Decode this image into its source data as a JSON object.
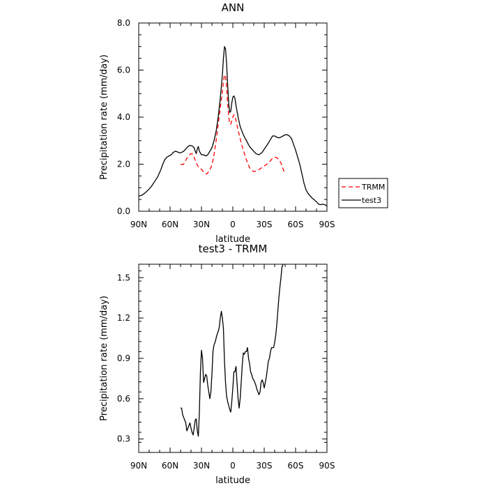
{
  "chart_data": [
    {
      "type": "line",
      "title": "ANN",
      "xlabel": "latitude",
      "ylabel": "Precipitation rate (mm/day)",
      "xlim": [
        90,
        -90
      ],
      "ylim": [
        0,
        8
      ],
      "x_ticks": [
        {
          "value": 90,
          "label": "90N"
        },
        {
          "value": 60,
          "label": "60N"
        },
        {
          "value": 30,
          "label": "30N"
        },
        {
          "value": 0,
          "label": "0"
        },
        {
          "value": -30,
          "label": "30S"
        },
        {
          "value": -60,
          "label": "60S"
        },
        {
          "value": -90,
          "label": "90S"
        }
      ],
      "y_ticks": [
        {
          "value": 0,
          "label": "0.0"
        },
        {
          "value": 2,
          "label": "2.0"
        },
        {
          "value": 4,
          "label": "4.0"
        },
        {
          "value": 6,
          "label": "6.0"
        },
        {
          "value": 8,
          "label": "8.0"
        }
      ],
      "grid": false,
      "legend": {
        "placement": "right"
      },
      "series": [
        {
          "name": "TRMM",
          "color": "#ff0000",
          "dash": "dashed",
          "points": [
            [
              50,
              1.98
            ],
            [
              47,
              2.0
            ],
            [
              44,
              2.25
            ],
            [
              41,
              2.42
            ],
            [
              39,
              2.45
            ],
            [
              37,
              2.3
            ],
            [
              35,
              2.05
            ],
            [
              33,
              1.9
            ],
            [
              30,
              1.78
            ],
            [
              27,
              1.62
            ],
            [
              25,
              1.58
            ],
            [
              23,
              1.68
            ],
            [
              20,
              1.95
            ],
            [
              18,
              2.4
            ],
            [
              16,
              3.0
            ],
            [
              14,
              3.7
            ],
            [
              12,
              4.4
            ],
            [
              10,
              5.1
            ],
            [
              9,
              5.5
            ],
            [
              8,
              5.8
            ],
            [
              7,
              5.75
            ],
            [
              6,
              5.3
            ],
            [
              5,
              4.6
            ],
            [
              4,
              4.05
            ],
            [
              3,
              3.7
            ],
            [
              2,
              3.7
            ],
            [
              1,
              3.85
            ],
            [
              0,
              4.0
            ],
            [
              -1,
              4.1
            ],
            [
              -2,
              4.05
            ],
            [
              -3,
              3.85
            ],
            [
              -5,
              3.45
            ],
            [
              -8,
              2.9
            ],
            [
              -12,
              2.3
            ],
            [
              -16,
              1.85
            ],
            [
              -20,
              1.68
            ],
            [
              -23,
              1.72
            ],
            [
              -26,
              1.8
            ],
            [
              -29,
              1.9
            ],
            [
              -32,
              1.98
            ],
            [
              -35,
              2.1
            ],
            [
              -38,
              2.25
            ],
            [
              -40,
              2.3
            ],
            [
              -42,
              2.28
            ],
            [
              -44,
              2.2
            ],
            [
              -46,
              2.05
            ],
            [
              -48,
              1.8
            ],
            [
              -50,
              1.58
            ]
          ]
        },
        {
          "name": "test3",
          "color": "#000000",
          "dash": "solid",
          "points": [
            [
              90,
              0.65
            ],
            [
              87,
              0.68
            ],
            [
              84,
              0.78
            ],
            [
              81,
              0.9
            ],
            [
              78,
              1.05
            ],
            [
              75,
              1.25
            ],
            [
              72,
              1.45
            ],
            [
              69,
              1.75
            ],
            [
              67,
              2.0
            ],
            [
              65,
              2.2
            ],
            [
              63,
              2.3
            ],
            [
              61,
              2.35
            ],
            [
              59,
              2.4
            ],
            [
              57,
              2.5
            ],
            [
              55,
              2.55
            ],
            [
              53,
              2.52
            ],
            [
              51,
              2.48
            ],
            [
              49,
              2.5
            ],
            [
              47,
              2.55
            ],
            [
              45,
              2.65
            ],
            [
              43,
              2.75
            ],
            [
              41,
              2.8
            ],
            [
              39,
              2.78
            ],
            [
              37,
              2.7
            ],
            [
              36,
              2.55
            ],
            [
              35,
              2.45
            ],
            [
              34,
              2.65
            ],
            [
              33,
              2.75
            ],
            [
              32,
              2.55
            ],
            [
              30,
              2.4
            ],
            [
              28,
              2.4
            ],
            [
              26,
              2.35
            ],
            [
              24,
              2.4
            ],
            [
              22,
              2.55
            ],
            [
              20,
              2.7
            ],
            [
              18,
              3.0
            ],
            [
              16,
              3.4
            ],
            [
              14,
              4.0
            ],
            [
              12,
              4.8
            ],
            [
              10,
              5.8
            ],
            [
              9,
              6.5
            ],
            [
              8,
              7.0
            ],
            [
              7,
              6.9
            ],
            [
              6,
              6.3
            ],
            [
              5,
              5.4
            ],
            [
              4,
              4.6
            ],
            [
              3,
              4.2
            ],
            [
              2,
              4.25
            ],
            [
              1,
              4.6
            ],
            [
              0,
              4.85
            ],
            [
              -1,
              4.9
            ],
            [
              -2,
              4.8
            ],
            [
              -3,
              4.5
            ],
            [
              -5,
              4.0
            ],
            [
              -7,
              3.6
            ],
            [
              -10,
              3.25
            ],
            [
              -13,
              3.0
            ],
            [
              -16,
              2.75
            ],
            [
              -19,
              2.6
            ],
            [
              -22,
              2.45
            ],
            [
              -25,
              2.4
            ],
            [
              -28,
              2.5
            ],
            [
              -31,
              2.7
            ],
            [
              -34,
              2.9
            ],
            [
              -36,
              3.05
            ],
            [
              -38,
              3.2
            ],
            [
              -40,
              3.2
            ],
            [
              -42,
              3.15
            ],
            [
              -44,
              3.12
            ],
            [
              -46,
              3.15
            ],
            [
              -48,
              3.2
            ],
            [
              -50,
              3.25
            ],
            [
              -52,
              3.25
            ],
            [
              -54,
              3.2
            ],
            [
              -56,
              3.1
            ],
            [
              -58,
              2.85
            ],
            [
              -60,
              2.6
            ],
            [
              -62,
              2.3
            ],
            [
              -64,
              2.0
            ],
            [
              -66,
              1.6
            ],
            [
              -68,
              1.2
            ],
            [
              -70,
              0.9
            ],
            [
              -72,
              0.75
            ],
            [
              -74,
              0.65
            ],
            [
              -76,
              0.55
            ],
            [
              -78,
              0.48
            ],
            [
              -80,
              0.4
            ],
            [
              -82,
              0.3
            ],
            [
              -84,
              0.28
            ],
            [
              -86,
              0.3
            ],
            [
              -88,
              0.28
            ],
            [
              -90,
              0.22
            ]
          ]
        }
      ]
    },
    {
      "type": "line",
      "title": "test3 - TRMM",
      "xlabel": "latitude",
      "ylabel": "Precipitation rate (mm/day)",
      "xlim": [
        90,
        -90
      ],
      "ylim": [
        0.2,
        1.6
      ],
      "x_ticks": [
        {
          "value": 90,
          "label": "90N"
        },
        {
          "value": 60,
          "label": "60N"
        },
        {
          "value": 30,
          "label": "30N"
        },
        {
          "value": 0,
          "label": "0"
        },
        {
          "value": -30,
          "label": "30S"
        },
        {
          "value": -60,
          "label": "60S"
        },
        {
          "value": -90,
          "label": "90S"
        }
      ],
      "y_ticks": [
        {
          "value": 0.3,
          "label": "0.3"
        },
        {
          "value": 0.6,
          "label": "0.6"
        },
        {
          "value": 0.9,
          "label": "0.9"
        },
        {
          "value": 1.2,
          "label": "1.2"
        },
        {
          "value": 1.5,
          "label": "1.5"
        }
      ],
      "grid": false,
      "series": [
        {
          "color": "#000000",
          "dash": "solid",
          "points": [
            [
              50,
              0.53
            ],
            [
              49,
              0.53
            ],
            [
              48,
              0.48
            ],
            [
              47,
              0.46
            ],
            [
              46,
              0.44
            ],
            [
              45,
              0.42
            ],
            [
              44,
              0.36
            ],
            [
              43,
              0.38
            ],
            [
              42,
              0.4
            ],
            [
              41,
              0.42
            ],
            [
              40,
              0.38
            ],
            [
              39,
              0.35
            ],
            [
              38,
              0.33
            ],
            [
              37,
              0.38
            ],
            [
              36,
              0.44
            ],
            [
              35,
              0.45
            ],
            [
              34,
              0.36
            ],
            [
              33,
              0.32
            ],
            [
              32,
              0.5
            ],
            [
              31,
              0.8
            ],
            [
              30,
              0.96
            ],
            [
              29,
              0.9
            ],
            [
              28,
              0.72
            ],
            [
              27,
              0.75
            ],
            [
              26,
              0.78
            ],
            [
              25,
              0.77
            ],
            [
              24,
              0.7
            ],
            [
              23,
              0.65
            ],
            [
              22,
              0.6
            ],
            [
              21,
              0.65
            ],
            [
              20,
              0.78
            ],
            [
              19,
              0.95
            ],
            [
              18,
              1.0
            ],
            [
              17,
              1.02
            ],
            [
              16,
              1.05
            ],
            [
              15,
              1.08
            ],
            [
              14,
              1.1
            ],
            [
              13,
              1.13
            ],
            [
              12,
              1.2
            ],
            [
              11,
              1.25
            ],
            [
              10,
              1.2
            ],
            [
              9,
              1.12
            ],
            [
              8,
              0.88
            ],
            [
              7,
              0.72
            ],
            [
              6,
              0.62
            ],
            [
              5,
              0.58
            ],
            [
              4,
              0.55
            ],
            [
              3,
              0.52
            ],
            [
              2,
              0.5
            ],
            [
              1,
              0.58
            ],
            [
              0,
              0.68
            ],
            [
              -1,
              0.8
            ],
            [
              -2,
              0.8
            ],
            [
              -3,
              0.84
            ],
            [
              -4,
              0.72
            ],
            [
              -5,
              0.6
            ],
            [
              -6,
              0.53
            ],
            [
              -7,
              0.6
            ],
            [
              -8,
              0.72
            ],
            [
              -9,
              0.85
            ],
            [
              -10,
              0.94
            ],
            [
              -11,
              0.93
            ],
            [
              -12,
              0.95
            ],
            [
              -13,
              0.95
            ],
            [
              -14,
              0.98
            ],
            [
              -15,
              0.9
            ],
            [
              -16,
              0.86
            ],
            [
              -17,
              0.8
            ],
            [
              -18,
              0.78
            ],
            [
              -19,
              0.75
            ],
            [
              -20,
              0.74
            ],
            [
              -21,
              0.72
            ],
            [
              -22,
              0.7
            ],
            [
              -23,
              0.67
            ],
            [
              -24,
              0.65
            ],
            [
              -25,
              0.63
            ],
            [
              -26,
              0.65
            ],
            [
              -27,
              0.72
            ],
            [
              -28,
              0.74
            ],
            [
              -29,
              0.72
            ],
            [
              -30,
              0.68
            ],
            [
              -31,
              0.72
            ],
            [
              -32,
              0.76
            ],
            [
              -33,
              0.82
            ],
            [
              -34,
              0.88
            ],
            [
              -35,
              0.9
            ],
            [
              -36,
              0.95
            ],
            [
              -37,
              0.98
            ],
            [
              -38,
              0.98
            ],
            [
              -39,
              0.98
            ],
            [
              -40,
              1.02
            ],
            [
              -41,
              1.07
            ],
            [
              -42,
              1.15
            ],
            [
              -43,
              1.25
            ],
            [
              -44,
              1.35
            ],
            [
              -45,
              1.43
            ],
            [
              -46,
              1.5
            ],
            [
              -47,
              1.58
            ],
            [
              -48,
              1.6
            ]
          ]
        }
      ]
    }
  ]
}
